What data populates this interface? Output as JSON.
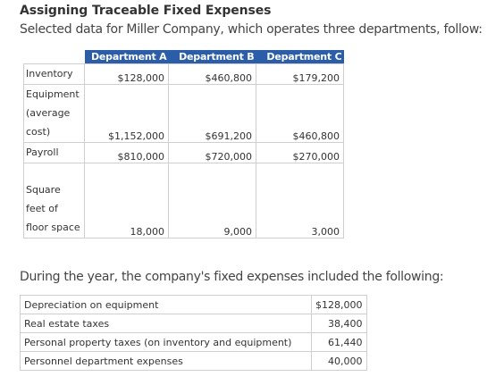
{
  "header": {
    "title": "Assigning Traceable Fixed Expenses",
    "intro": "Selected data for Miller Company, which operates three departments, follow:"
  },
  "department_table": {
    "columns": [
      "Department A",
      "Department B",
      "Department C"
    ],
    "rows": [
      {
        "label": "Inventory",
        "values": [
          "$128,000",
          "$460,800",
          "$179,200"
        ]
      },
      {
        "label": "Equipment (average cost)",
        "values": [
          "$1,152,000",
          "$691,200",
          "$460,800"
        ]
      },
      {
        "label": "Payroll",
        "values": [
          "$810,000",
          "$720,000",
          "$270,000"
        ]
      },
      {
        "label": "Square feet of floor space",
        "values": [
          "18,000",
          "9,000",
          "3,000"
        ]
      }
    ]
  },
  "expenses": {
    "intro": "During the year, the company's fixed expenses included the following:",
    "rows": [
      {
        "item": "Depreciation on equipment",
        "amount": "$128,000"
      },
      {
        "item": "Real estate taxes",
        "amount": "38,400"
      },
      {
        "item": "Personal property taxes (on inventory and equipment)",
        "amount": "61,440"
      },
      {
        "item": "Personnel department expenses",
        "amount": "40,000"
      }
    ]
  }
}
